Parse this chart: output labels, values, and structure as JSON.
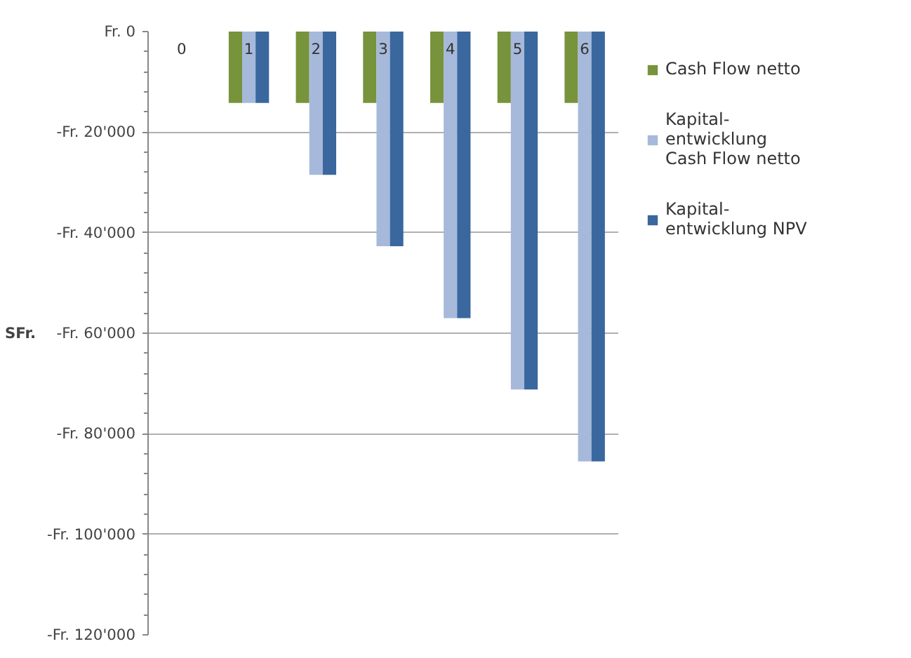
{
  "chart_data": {
    "type": "bar",
    "categories": [
      "0",
      "1",
      "2",
      "3",
      "4",
      "5",
      "6"
    ],
    "series": [
      {
        "name": "Cash Flow netto",
        "color": "#77933c",
        "values": [
          0,
          -14200,
          -14200,
          -14200,
          -14200,
          -14200,
          -14200
        ]
      },
      {
        "name": "Kapital-entwicklung Cash Flow netto",
        "color": "#a6b9da",
        "values": [
          0,
          -14200,
          -28500,
          -42700,
          -57000,
          -71200,
          -85500
        ]
      },
      {
        "name": "Kapital-entwicklung NPV",
        "color": "#3a679e",
        "values": [
          0,
          -14200,
          -28500,
          -42700,
          -57000,
          -71200,
          -85500
        ]
      }
    ],
    "ylabel": "SFr.",
    "ylim": [
      -120000,
      0
    ],
    "yticks": [
      {
        "value": 0,
        "label": "Fr. 0"
      },
      {
        "value": -20000,
        "label": "-Fr. 20'000"
      },
      {
        "value": -40000,
        "label": "-Fr. 40'000"
      },
      {
        "value": -60000,
        "label": "-Fr. 60'000"
      },
      {
        "value": -80000,
        "label": "-Fr. 80'000"
      },
      {
        "value": -100000,
        "label": "-Fr. 100'000"
      },
      {
        "value": -120000,
        "label": "-Fr. 120'000"
      }
    ],
    "grid": "y",
    "legend": "right"
  }
}
